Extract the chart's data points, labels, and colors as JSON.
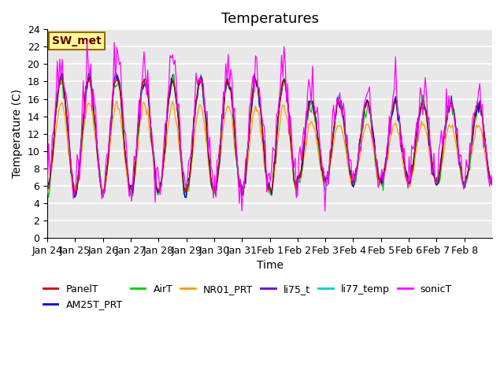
{
  "title": "Temperatures",
  "xlabel": "Time",
  "ylabel": "Temperature (C)",
  "ylim": [
    0,
    24
  ],
  "yticks": [
    0,
    2,
    4,
    6,
    8,
    10,
    12,
    14,
    16,
    18,
    20,
    22,
    24
  ],
  "series_colors": {
    "PanelT": "#cc0000",
    "AM25T_PRT": "#0000cc",
    "AirT": "#00cc00",
    "NR01_PRT": "#ff9900",
    "li75_t": "#6600cc",
    "li77_temp": "#00cccc",
    "sonicT": "#ff00ff"
  },
  "annotation_text": "SW_met",
  "annotation_bg": "#ffff99",
  "annotation_border": "#996600",
  "annotation_text_color": "#660000",
  "background_color": "#e8e8e8",
  "grid_color": "#ffffff",
  "num_points": 360,
  "days": 16,
  "xtick_labels": [
    "Jan 24",
    "Jan 25",
    "Jan 26",
    "Jan 27",
    "Jan 28",
    "Jan 29",
    "Jan 30",
    "Jan 31",
    "Feb 1",
    "Feb 2",
    "Feb 3",
    "Feb 4",
    "Feb 5",
    "Feb 6",
    "Feb 7",
    "Feb 8"
  ],
  "legend_entries": [
    "PanelT",
    "AM25T_PRT",
    "AirT",
    "NR01_PRT",
    "li75_t",
    "li77_temp",
    "sonicT"
  ],
  "title_fontsize": 13,
  "axis_fontsize": 10,
  "tick_fontsize": 9
}
